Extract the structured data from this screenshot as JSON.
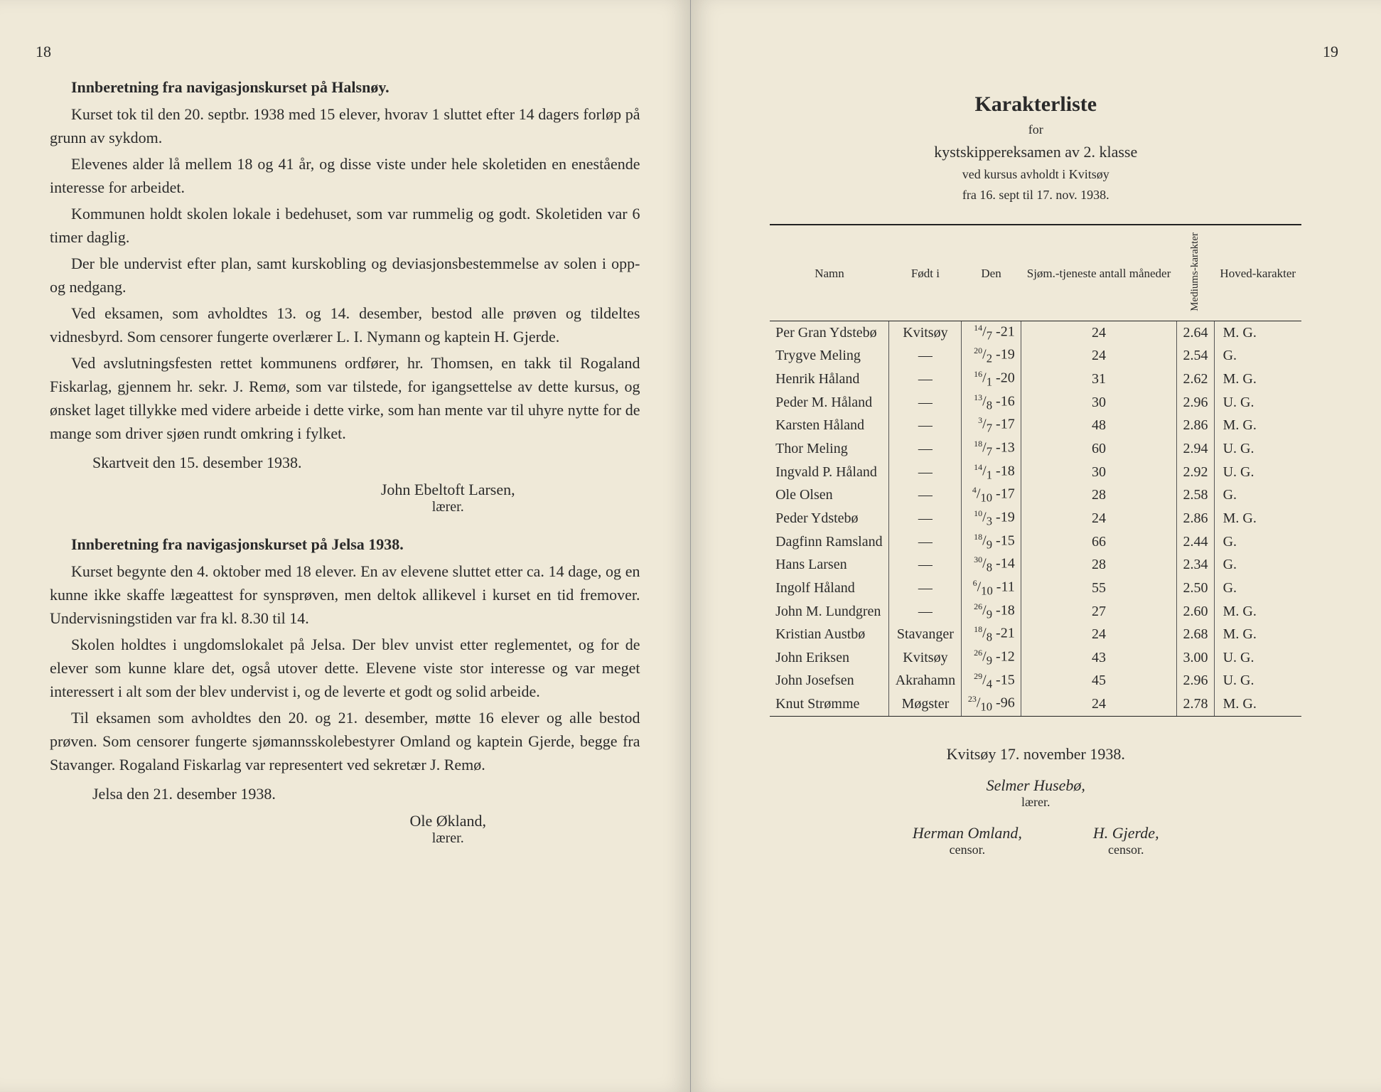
{
  "leftPage": {
    "pageNumber": "18",
    "section1": {
      "heading": "Innberetning fra navigasjonskurset på Halsnøy.",
      "paragraphs": [
        "Kurset tok til den 20. septbr. 1938 med 15 elever, hvorav 1 sluttet efter 14 dagers forløp på grunn av sykdom.",
        "Elevenes alder lå mellem 18 og 41 år, og disse viste under hele skoletiden en enestående interesse for arbeidet.",
        "Kommunen holdt skolen lokale i bedehuset, som var rummelig og godt. Skoletiden var 6 timer daglig.",
        "Der ble undervist efter plan, samt kurskobling og deviasjonsbestemmelse av solen i opp- og nedgang.",
        "Ved eksamen, som avholdtes 13. og 14. desember, bestod alle prøven og tildeltes vidnesbyrd. Som censorer fungerte overlærer L. I. Nymann og kaptein H. Gjerde.",
        "Ved avslutningsfesten rettet kommunens ordfører, hr. Thomsen, en takk til Rogaland Fiskarlag, gjennem hr. sekr. J. Remø, som var tilstede, for igangsettelse av dette kursus, og ønsket laget tillykke med videre arbeide i dette virke, som han mente var til uhyre nytte for de mange som driver sjøen rundt omkring i fylket."
      ],
      "dateLine": "Skartveit den 15. desember 1938.",
      "sigName": "John Ebeltoft Larsen,",
      "sigRole": "lærer."
    },
    "section2": {
      "heading": "Innberetning fra navigasjonskurset på Jelsa 1938.",
      "paragraphs": [
        "Kurset begynte den 4. oktober med 18 elever. En av elevene sluttet etter ca. 14 dage, og en kunne ikke skaffe lægeattest for synsprøven, men deltok allikevel i kurset en tid fremover. Undervisningstiden var fra kl. 8.30 til 14.",
        "Skolen holdtes i ungdomslokalet på Jelsa. Der blev unvist etter reglementet, og for de elever som kunne klare det, også utover dette. Elevene viste stor interesse og var meget interessert i alt som der blev undervist i, og de leverte et godt og solid arbeide.",
        "Til eksamen som avholdtes den 20. og 21. desember, møtte 16 elever og alle bestod prøven. Som censorer fungerte sjømannsskolebestyrer Omland og kaptein Gjerde, begge fra Stavanger. Rogaland Fiskarlag var representert ved sekretær J. Remø."
      ],
      "dateLine": "Jelsa den 21. desember 1938.",
      "sigName": "Ole Økland,",
      "sigRole": "lærer."
    }
  },
  "rightPage": {
    "pageNumber": "19",
    "title": "Karakterliste",
    "subtitleFor": "for",
    "subtitle": "kystskippereksamen av 2. klasse",
    "venue": "ved kursus avholdt i Kvitsøy",
    "dates": "fra 16. sept til 17. nov. 1938.",
    "table": {
      "columns": [
        "Namn",
        "Født i",
        "Den",
        "Sjøm.-tjeneste antall måneder",
        "Mediums-karakter",
        "Hoved-karakter"
      ],
      "rows": [
        {
          "name": "Per Gran Ydstebø",
          "born": "Kvitsøy",
          "date_d": "14",
          "date_m": "7",
          "date_y": "-21",
          "months": "24",
          "med": "2.64",
          "main": "M. G."
        },
        {
          "name": "Trygve Meling",
          "born": "—",
          "date_d": "20",
          "date_m": "2",
          "date_y": "-19",
          "months": "24",
          "med": "2.54",
          "main": "G."
        },
        {
          "name": "Henrik Håland",
          "born": "—",
          "date_d": "16",
          "date_m": "1",
          "date_y": "-20",
          "months": "31",
          "med": "2.62",
          "main": "M. G."
        },
        {
          "name": "Peder M. Håland",
          "born": "—",
          "date_d": "13",
          "date_m": "8",
          "date_y": "-16",
          "months": "30",
          "med": "2.96",
          "main": "U. G."
        },
        {
          "name": "Karsten Håland",
          "born": "—",
          "date_d": "3",
          "date_m": "7",
          "date_y": "-17",
          "months": "48",
          "med": "2.86",
          "main": "M. G."
        },
        {
          "name": "Thor Meling",
          "born": "—",
          "date_d": "18",
          "date_m": "7",
          "date_y": "-13",
          "months": "60",
          "med": "2.94",
          "main": "U. G."
        },
        {
          "name": "Ingvald P. Håland",
          "born": "—",
          "date_d": "14",
          "date_m": "1",
          "date_y": "-18",
          "months": "30",
          "med": "2.92",
          "main": "U. G."
        },
        {
          "name": "Ole Olsen",
          "born": "—",
          "date_d": "4",
          "date_m": "10",
          "date_y": "-17",
          "months": "28",
          "med": "2.58",
          "main": "G."
        },
        {
          "name": "Peder Ydstebø",
          "born": "—",
          "date_d": "10",
          "date_m": "3",
          "date_y": "-19",
          "months": "24",
          "med": "2.86",
          "main": "M. G."
        },
        {
          "name": "Dagfinn Ramsland",
          "born": "—",
          "date_d": "18",
          "date_m": "9",
          "date_y": "-15",
          "months": "66",
          "med": "2.44",
          "main": "G."
        },
        {
          "name": "Hans Larsen",
          "born": "—",
          "date_d": "30",
          "date_m": "8",
          "date_y": "-14",
          "months": "28",
          "med": "2.34",
          "main": "G."
        },
        {
          "name": "Ingolf Håland",
          "born": "—",
          "date_d": "6",
          "date_m": "10",
          "date_y": "-11",
          "months": "55",
          "med": "2.50",
          "main": "G."
        },
        {
          "name": "John M. Lundgren",
          "born": "—",
          "date_d": "26",
          "date_m": "9",
          "date_y": "-18",
          "months": "27",
          "med": "2.60",
          "main": "M. G."
        },
        {
          "name": "Kristian Austbø",
          "born": "Stavanger",
          "date_d": "18",
          "date_m": "8",
          "date_y": "-21",
          "months": "24",
          "med": "2.68",
          "main": "M. G."
        },
        {
          "name": "John Eriksen",
          "born": "Kvitsøy",
          "date_d": "26",
          "date_m": "9",
          "date_y": "-12",
          "months": "43",
          "med": "3.00",
          "main": "U. G."
        },
        {
          "name": "John Josefsen",
          "born": "Akrahamn",
          "date_d": "29",
          "date_m": "4",
          "date_y": "-15",
          "months": "45",
          "med": "2.96",
          "main": "U. G."
        },
        {
          "name": "Knut Strømme",
          "born": "Møgster",
          "date_d": "23",
          "date_m": "10",
          "date_y": "-96",
          "months": "24",
          "med": "2.78",
          "main": "M. G."
        }
      ]
    },
    "footerDate": "Kvitsøy 17. november 1938.",
    "teacher": {
      "name": "Selmer Husebø,",
      "role": "lærer."
    },
    "censors": [
      {
        "name": "Herman Omland,",
        "role": "censor."
      },
      {
        "name": "H. Gjerde,",
        "role": "censor."
      }
    ]
  }
}
